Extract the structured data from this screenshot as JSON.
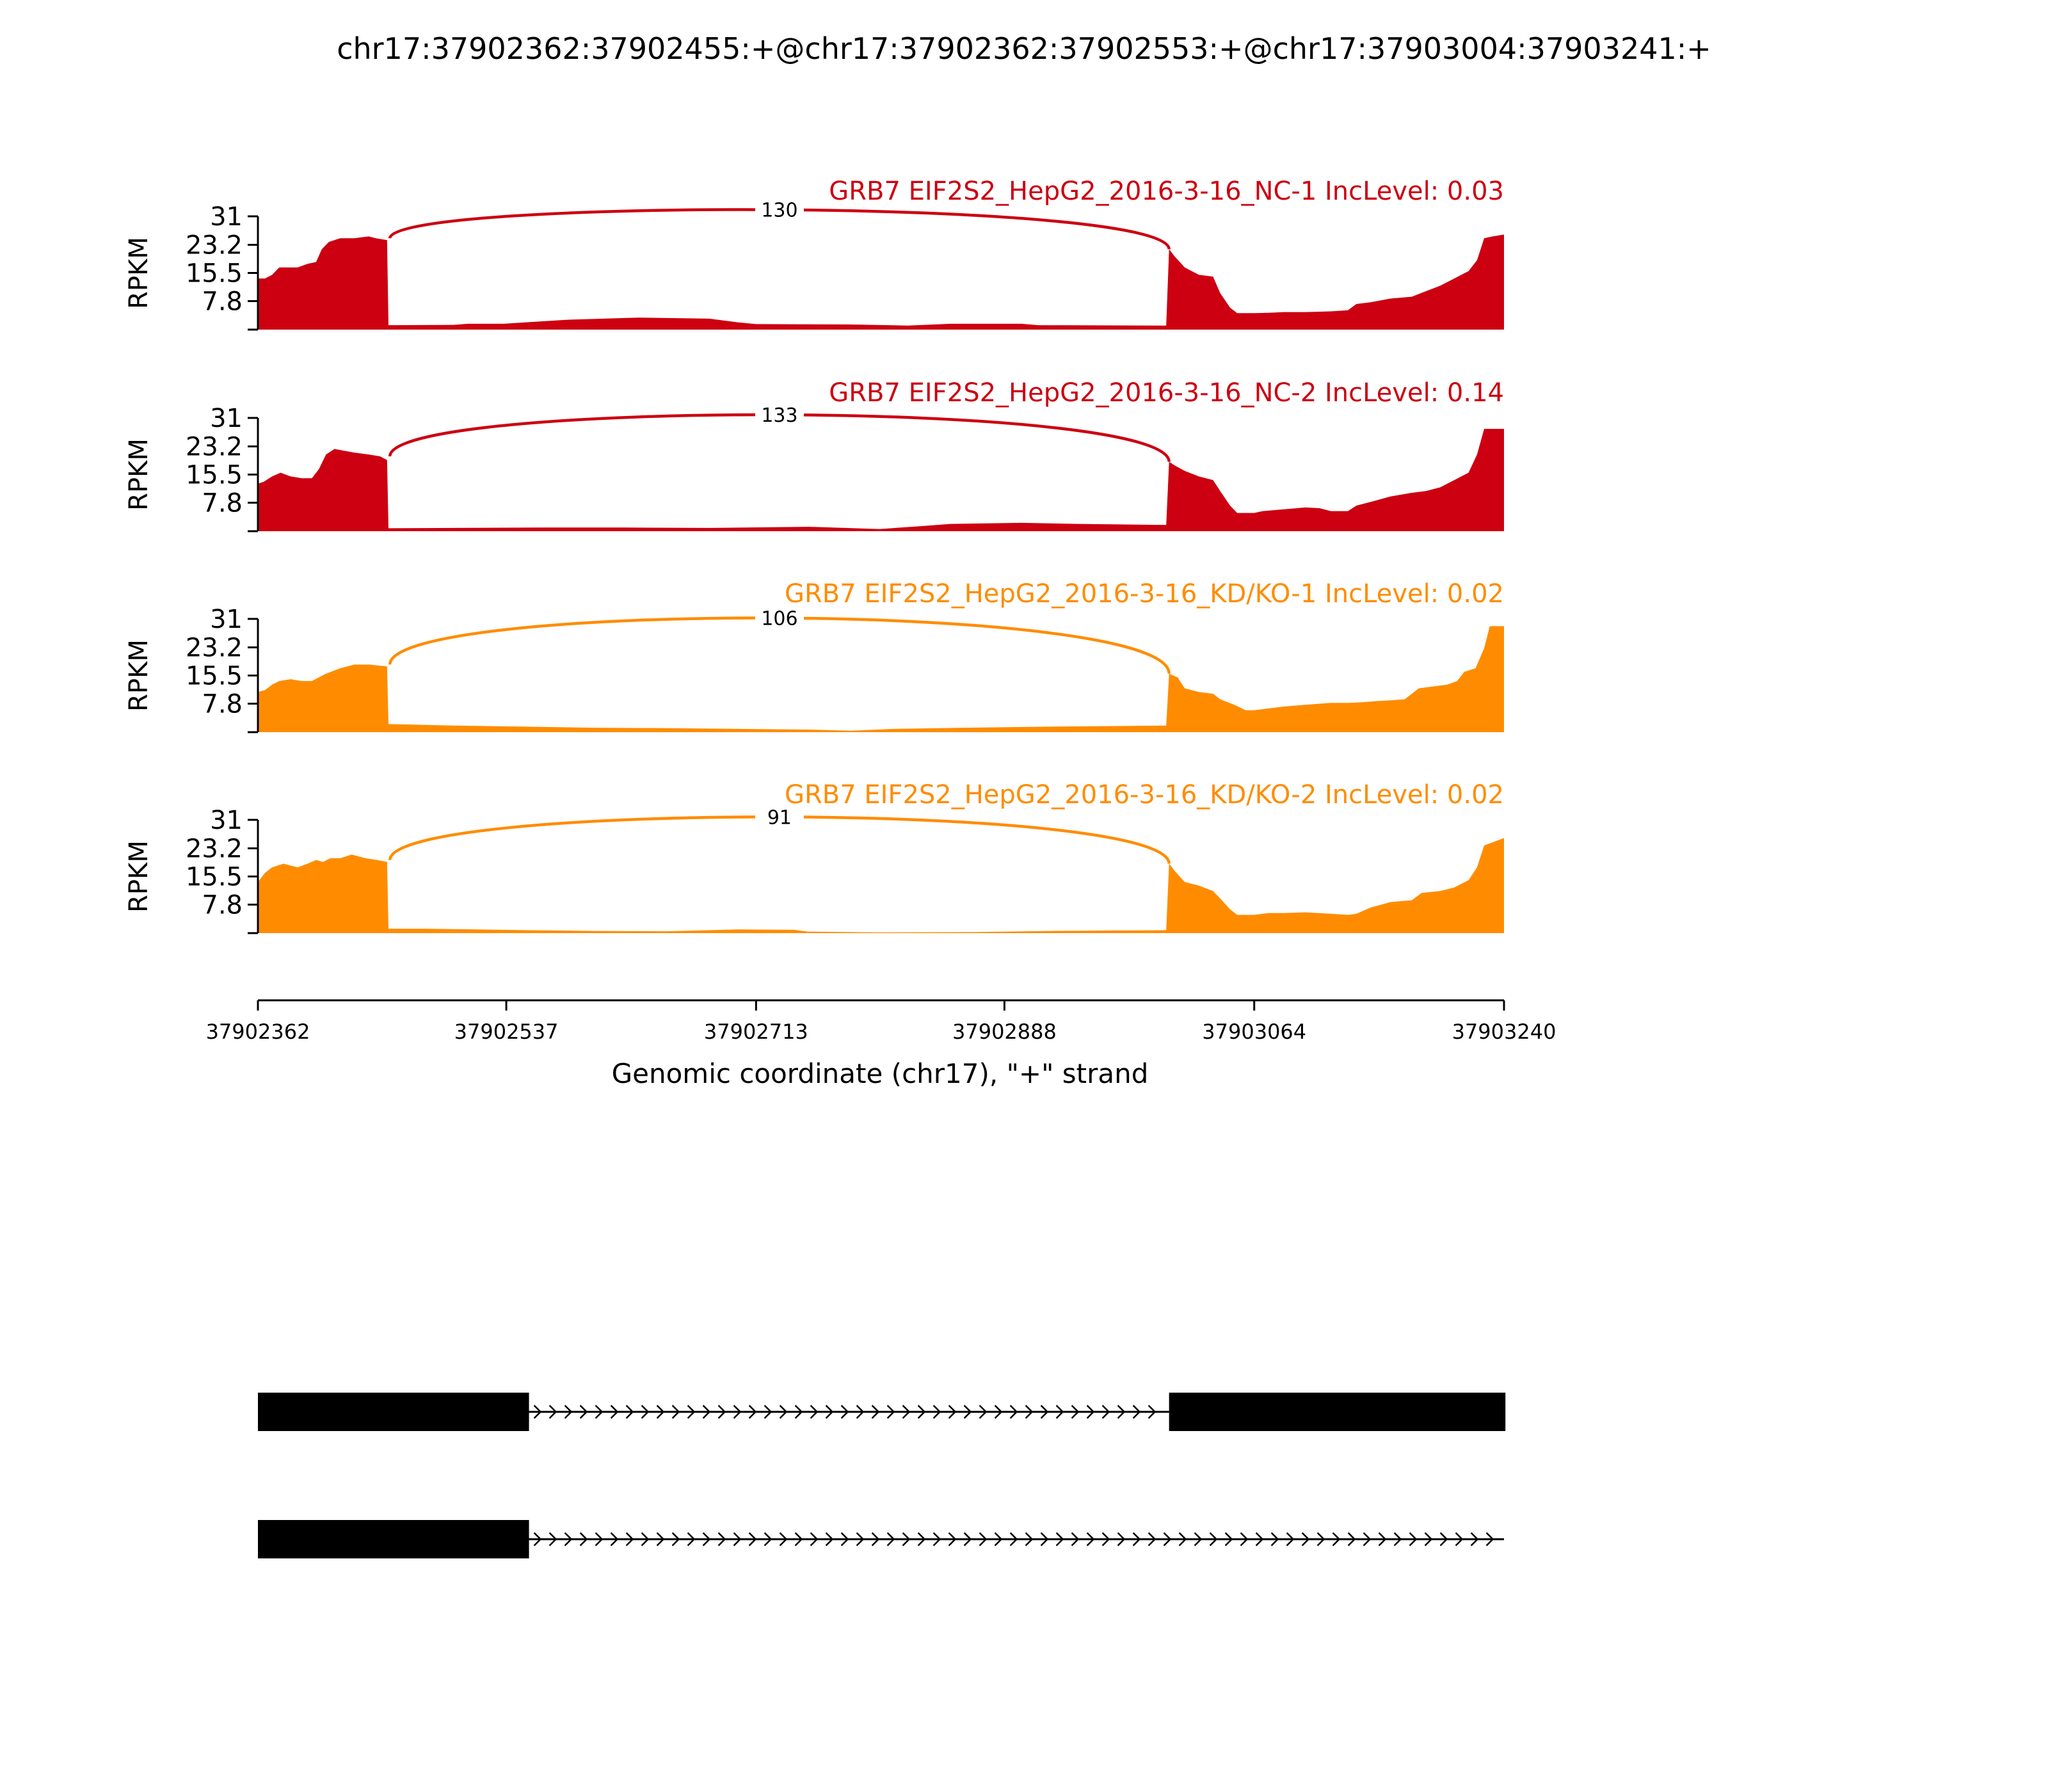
{
  "chart_data": {
    "type": "area",
    "title": "chr17:37902362:37902455:+@chr17:37902362:37902553:+@chr17:37903004:37903241:+",
    "xlabel": "Genomic coordinate (chr17), \"+\" strand",
    "ylabel": "RPKM",
    "xlim": [
      37902362,
      37903240
    ],
    "ylim": [
      0,
      31
    ],
    "x_ticks": [
      "37902362",
      "37902537",
      "37902713",
      "37902888",
      "37903064",
      "37903240"
    ],
    "x_tick_values": [
      37902362,
      37902537,
      37902713,
      37902888,
      37903064,
      37903240
    ],
    "y_ticks": [
      "31",
      "23.2",
      "15.5",
      "7.8"
    ],
    "y_tick_values": [
      31,
      23.2,
      15.5,
      7.8
    ],
    "series": [
      {
        "name": "GRB7 EIF2S2_HepG2_2016-3-16_NC-1 IncLevel: 0.03",
        "color": "#cc0011",
        "junction_count": "130",
        "junction": [
          37902455,
          37903004
        ],
        "points": [
          [
            37902362,
            14
          ],
          [
            37902367,
            14
          ],
          [
            37902372,
            15
          ],
          [
            37902377,
            17
          ],
          [
            37902390,
            17
          ],
          [
            37902397,
            18
          ],
          [
            37902403,
            18.5
          ],
          [
            37902407,
            22
          ],
          [
            37902412,
            24
          ],
          [
            37902420,
            25
          ],
          [
            37902430,
            25
          ],
          [
            37902440,
            25.5
          ],
          [
            37902445,
            25
          ],
          [
            37902453,
            24.5
          ],
          [
            37902454,
            1.2
          ],
          [
            37902500,
            1.3
          ],
          [
            37902510,
            1.6
          ],
          [
            37902535,
            1.6
          ],
          [
            37902560,
            2.2
          ],
          [
            37902580,
            2.7
          ],
          [
            37902630,
            3.3
          ],
          [
            37902680,
            3
          ],
          [
            37902700,
            2
          ],
          [
            37902713,
            1.5
          ],
          [
            37902780,
            1.4
          ],
          [
            37902820,
            1.1
          ],
          [
            37902850,
            1.6
          ],
          [
            37902900,
            1.6
          ],
          [
            37902912,
            1.2
          ],
          [
            37903002,
            1.1
          ],
          [
            37903004,
            22
          ],
          [
            37903008,
            20
          ],
          [
            37903015,
            17
          ],
          [
            37903025,
            15
          ],
          [
            37903035,
            14.5
          ],
          [
            37903040,
            10
          ],
          [
            37903047,
            6
          ],
          [
            37903052,
            4.5
          ],
          [
            37903064,
            4.5
          ],
          [
            37903074,
            4.6
          ],
          [
            37903085,
            4.8
          ],
          [
            37903100,
            4.8
          ],
          [
            37903118,
            5
          ],
          [
            37903130,
            5.3
          ],
          [
            37903136,
            7
          ],
          [
            37903146,
            7.5
          ],
          [
            37903160,
            8.5
          ],
          [
            37903175,
            9
          ],
          [
            37903185,
            10.5
          ],
          [
            37903195,
            12
          ],
          [
            37903205,
            14
          ],
          [
            37903215,
            16
          ],
          [
            37903221,
            19
          ],
          [
            37903226,
            25
          ],
          [
            37903232,
            25.5
          ],
          [
            37903240,
            26
          ]
        ]
      },
      {
        "name": "GRB7 EIF2S2_HepG2_2016-3-16_NC-2 IncLevel: 0.14",
        "color": "#cc0011",
        "junction_count": "133",
        "junction": [
          37902455,
          37903004
        ],
        "points": [
          [
            37902362,
            13
          ],
          [
            37902366,
            13.5
          ],
          [
            37902372,
            15
          ],
          [
            37902378,
            16
          ],
          [
            37902385,
            15
          ],
          [
            37902393,
            14.5
          ],
          [
            37902400,
            14.5
          ],
          [
            37902405,
            17
          ],
          [
            37902410,
            21
          ],
          [
            37902416,
            22.5
          ],
          [
            37902430,
            21.5
          ],
          [
            37902440,
            21
          ],
          [
            37902448,
            20.5
          ],
          [
            37902453,
            19.5
          ],
          [
            37902454,
            0.8
          ],
          [
            37902500,
            0.9
          ],
          [
            37902560,
            1
          ],
          [
            37902620,
            1
          ],
          [
            37902680,
            0.9
          ],
          [
            37902750,
            1.2
          ],
          [
            37902800,
            0.6
          ],
          [
            37902830,
            1.4
          ],
          [
            37902850,
            2
          ],
          [
            37902900,
            2.3
          ],
          [
            37902940,
            2
          ],
          [
            37903002,
            1.7
          ],
          [
            37903004,
            19
          ],
          [
            37903008,
            18
          ],
          [
            37903015,
            16.5
          ],
          [
            37903025,
            15
          ],
          [
            37903035,
            14
          ],
          [
            37903040,
            11
          ],
          [
            37903047,
            7
          ],
          [
            37903052,
            5
          ],
          [
            37903064,
            5
          ],
          [
            37903070,
            5.5
          ],
          [
            37903085,
            6
          ],
          [
            37903100,
            6.5
          ],
          [
            37903110,
            6.3
          ],
          [
            37903118,
            5.5
          ],
          [
            37903130,
            5.5
          ],
          [
            37903136,
            7
          ],
          [
            37903146,
            8
          ],
          [
            37903160,
            9.5
          ],
          [
            37903175,
            10.5
          ],
          [
            37903185,
            11
          ],
          [
            37903195,
            12
          ],
          [
            37903205,
            14
          ],
          [
            37903215,
            16
          ],
          [
            37903221,
            21
          ],
          [
            37903226,
            28
          ],
          [
            37903240,
            28
          ]
        ]
      },
      {
        "name": "GRB7 EIF2S2_HepG2_2016-3-16_KD/KO-1 IncLevel: 0.02",
        "color": "#ff8c00",
        "junction_count": "106",
        "junction": [
          37902455,
          37903004
        ],
        "points": [
          [
            37902362,
            11
          ],
          [
            37902367,
            11.5
          ],
          [
            37902372,
            13
          ],
          [
            37902377,
            14
          ],
          [
            37902385,
            14.5
          ],
          [
            37902393,
            14
          ],
          [
            37902400,
            14
          ],
          [
            37902410,
            16
          ],
          [
            37902420,
            17.5
          ],
          [
            37902430,
            18.5
          ],
          [
            37902440,
            18.5
          ],
          [
            37902453,
            18
          ],
          [
            37902454,
            2.2
          ],
          [
            37902500,
            1.8
          ],
          [
            37902550,
            1.5
          ],
          [
            37902600,
            1.2
          ],
          [
            37902650,
            1.1
          ],
          [
            37902700,
            0.9
          ],
          [
            37902750,
            0.7
          ],
          [
            37902780,
            0.4
          ],
          [
            37902810,
            0.9
          ],
          [
            37902860,
            1.2
          ],
          [
            37902920,
            1.5
          ],
          [
            37903002,
            1.8
          ],
          [
            37903004,
            16
          ],
          [
            37903010,
            15
          ],
          [
            37903015,
            12
          ],
          [
            37903025,
            11
          ],
          [
            37903035,
            10.5
          ],
          [
            37903040,
            9
          ],
          [
            37903050,
            7.5
          ],
          [
            37903058,
            6
          ],
          [
            37903064,
            6
          ],
          [
            37903074,
            6.5
          ],
          [
            37903085,
            7
          ],
          [
            37903100,
            7.5
          ],
          [
            37903118,
            8
          ],
          [
            37903130,
            8
          ],
          [
            37903140,
            8.2
          ],
          [
            37903150,
            8.5
          ],
          [
            37903160,
            8.7
          ],
          [
            37903170,
            9
          ],
          [
            37903180,
            12
          ],
          [
            37903190,
            12.5
          ],
          [
            37903200,
            13
          ],
          [
            37903207,
            14
          ],
          [
            37903212,
            16.5
          ],
          [
            37903220,
            17.5
          ],
          [
            37903226,
            23
          ],
          [
            37903230,
            29
          ],
          [
            37903240,
            29
          ]
        ]
      },
      {
        "name": "GRB7 EIF2S2_HepG2_2016-3-16_KD/KO-2 IncLevel: 0.02",
        "color": "#ff8c00",
        "junction_count": "91",
        "junction": [
          37902455,
          37903004
        ],
        "points": [
          [
            37902362,
            14
          ],
          [
            37902367,
            16.5
          ],
          [
            37902372,
            18
          ],
          [
            37902380,
            19
          ],
          [
            37902390,
            18
          ],
          [
            37902397,
            19
          ],
          [
            37902403,
            20
          ],
          [
            37902408,
            19.5
          ],
          [
            37902413,
            20.5
          ],
          [
            37902420,
            20.5
          ],
          [
            37902428,
            21.5
          ],
          [
            37902438,
            20.5
          ],
          [
            37902446,
            20
          ],
          [
            37902453,
            19.5
          ],
          [
            37902454,
            1.2
          ],
          [
            37902480,
            1.2
          ],
          [
            37902500,
            1.1
          ],
          [
            37902550,
            0.8
          ],
          [
            37902600,
            0.6
          ],
          [
            37902650,
            0.5
          ],
          [
            37902700,
            1
          ],
          [
            37902740,
            0.9
          ],
          [
            37902750,
            0.4
          ],
          [
            37902800,
            0.2
          ],
          [
            37902870,
            0.3
          ],
          [
            37902920,
            0.6
          ],
          [
            37903002,
            0.8
          ],
          [
            37903004,
            19
          ],
          [
            37903008,
            17
          ],
          [
            37903015,
            14
          ],
          [
            37903025,
            13
          ],
          [
            37903035,
            11.5
          ],
          [
            37903040,
            9.5
          ],
          [
            37903047,
            6.5
          ],
          [
            37903052,
            5
          ],
          [
            37903064,
            5
          ],
          [
            37903074,
            5.5
          ],
          [
            37903085,
            5.5
          ],
          [
            37903100,
            5.7
          ],
          [
            37903118,
            5.3
          ],
          [
            37903130,
            5
          ],
          [
            37903136,
            5.3
          ],
          [
            37903146,
            7
          ],
          [
            37903160,
            8.5
          ],
          [
            37903175,
            9
          ],
          [
            37903182,
            11
          ],
          [
            37903195,
            11.5
          ],
          [
            37903205,
            12.5
          ],
          [
            37903215,
            14.5
          ],
          [
            37903221,
            18
          ],
          [
            37903226,
            24
          ],
          [
            37903240,
            26
          ]
        ]
      }
    ],
    "gene_models": [
      {
        "exons": [
          [
            37902362,
            37902553
          ],
          [
            37903004,
            37903241
          ]
        ]
      },
      {
        "exons": [
          [
            37902362,
            37902553
          ]
        ],
        "intron_to": 37903240
      }
    ]
  }
}
